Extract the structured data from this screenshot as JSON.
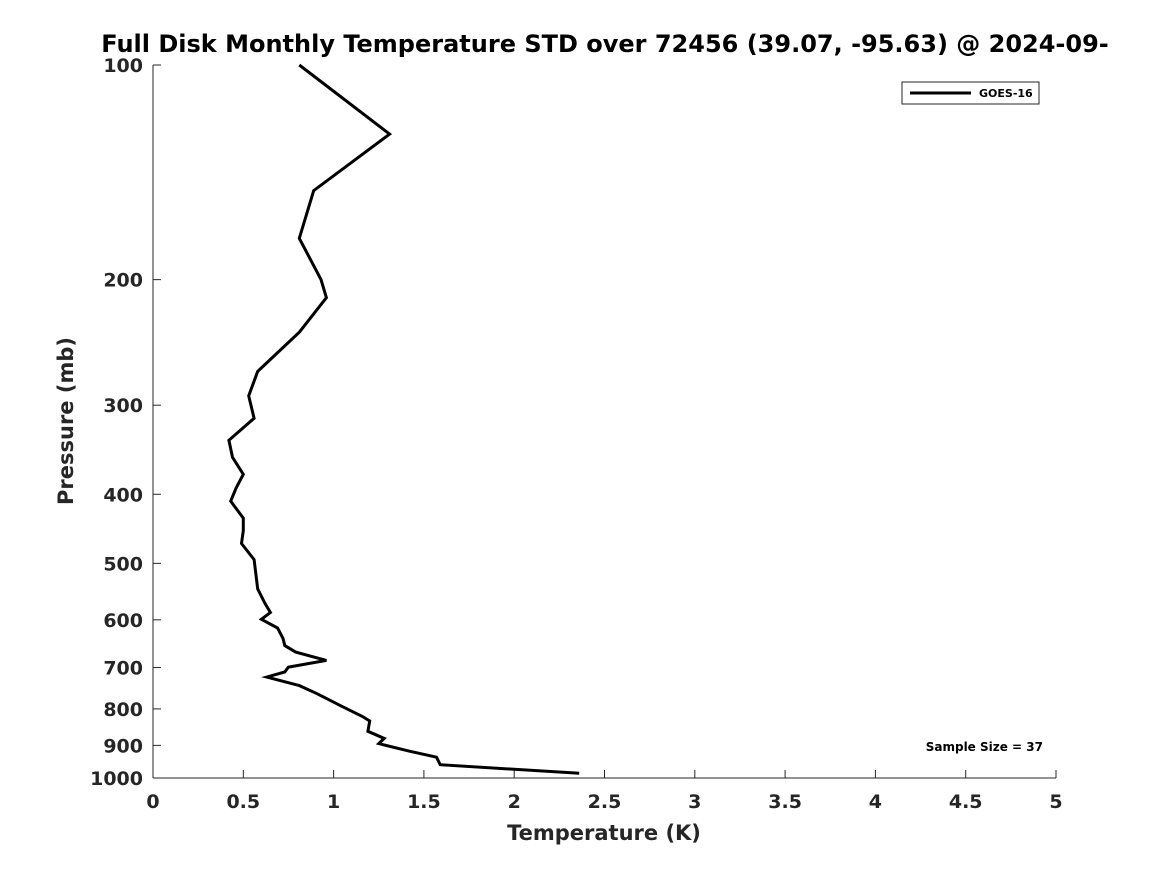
{
  "chart_data": {
    "type": "line",
    "title": "Full Disk Monthly Temperature STD over 72456 (39.07, -95.63) @ 2024-09-",
    "xlabel": "Temperature (K)",
    "ylabel": "Pressure (mb)",
    "xlim": [
      0,
      5
    ],
    "ylim": [
      100,
      1000
    ],
    "y_scale": "log",
    "y_reversed": true,
    "x_ticks": [
      "0",
      "0.5",
      "1",
      "1.5",
      "2",
      "2.5",
      "3",
      "3.5",
      "4",
      "4.5",
      "5"
    ],
    "y_ticks": [
      "100",
      "200",
      "300",
      "400",
      "500",
      "600",
      "700",
      "800",
      "900",
      "1000"
    ],
    "grid": false,
    "legend_position": "top-right",
    "series": [
      {
        "name": "GOES-16",
        "color": "#000000",
        "points": [
          [
            0.81,
            100
          ],
          [
            1.31,
            125
          ],
          [
            0.89,
            150
          ],
          [
            0.81,
            175
          ],
          [
            0.93,
            200
          ],
          [
            0.96,
            212
          ],
          [
            0.81,
            237
          ],
          [
            0.58,
            269
          ],
          [
            0.53,
            291
          ],
          [
            0.56,
            313
          ],
          [
            0.42,
            336
          ],
          [
            0.44,
            355
          ],
          [
            0.5,
            375
          ],
          [
            0.46,
            392
          ],
          [
            0.43,
            409
          ],
          [
            0.5,
            432
          ],
          [
            0.5,
            450
          ],
          [
            0.49,
            469
          ],
          [
            0.56,
            494
          ],
          [
            0.57,
            518
          ],
          [
            0.58,
            543
          ],
          [
            0.62,
            569
          ],
          [
            0.65,
            586
          ],
          [
            0.6,
            599
          ],
          [
            0.69,
            616
          ],
          [
            0.72,
            637
          ],
          [
            0.73,
            652
          ],
          [
            0.79,
            666
          ],
          [
            0.96,
            684
          ],
          [
            0.75,
            699
          ],
          [
            0.73,
            710
          ],
          [
            0.63,
            722
          ],
          [
            0.81,
            742
          ],
          [
            0.91,
            762
          ],
          [
            1.04,
            792
          ],
          [
            1.16,
            820
          ],
          [
            1.2,
            832
          ],
          [
            1.19,
            860
          ],
          [
            1.28,
            880
          ],
          [
            1.25,
            895
          ],
          [
            1.42,
            917
          ],
          [
            1.57,
            935
          ],
          [
            1.59,
            958
          ],
          [
            2.36,
            985
          ]
        ]
      }
    ],
    "annotations": [
      "Sample Size = 37"
    ]
  }
}
